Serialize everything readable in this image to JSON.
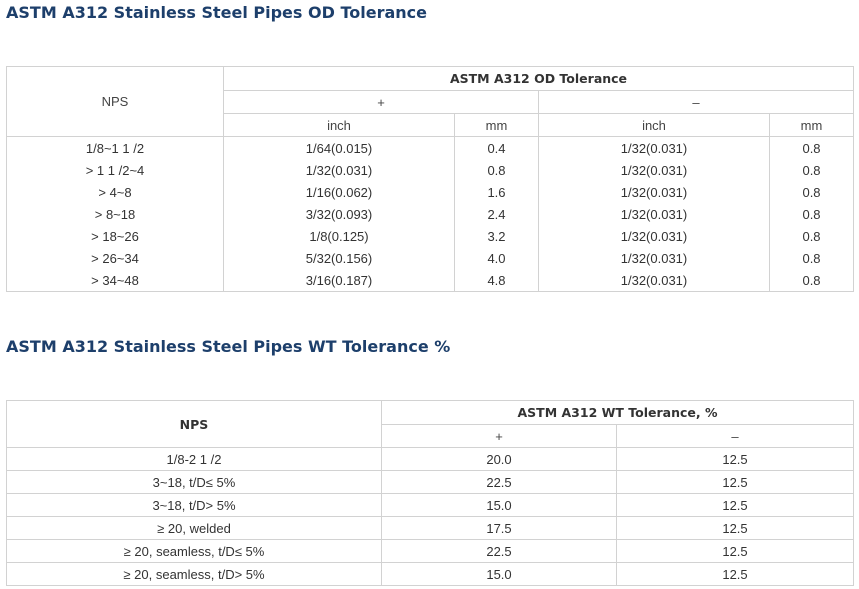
{
  "od_section": {
    "title": "ASTM A312 Stainless Steel Pipes OD Tolerance",
    "nps_header": "NPS",
    "group_header": "ASTM A312 OD Tolerance",
    "plus_label": "+",
    "minus_label": "–",
    "inch_label": "inch",
    "mm_label": "mm",
    "rows": [
      {
        "nps": "1/8~1 1 /2",
        "plus_inch": "1/64(0.015)",
        "plus_mm": "0.4",
        "minus_inch": "1/32(0.031)",
        "minus_mm": "0.8"
      },
      {
        "nps": "> 1 1 /2~4",
        "plus_inch": "1/32(0.031)",
        "plus_mm": "0.8",
        "minus_inch": "1/32(0.031)",
        "minus_mm": "0.8"
      },
      {
        "nps": "> 4~8",
        "plus_inch": "1/16(0.062)",
        "plus_mm": "1.6",
        "minus_inch": "1/32(0.031)",
        "minus_mm": "0.8"
      },
      {
        "nps": "> 8~18",
        "plus_inch": "3/32(0.093)",
        "plus_mm": "2.4",
        "minus_inch": "1/32(0.031)",
        "minus_mm": "0.8"
      },
      {
        "nps": "> 18~26",
        "plus_inch": "1/8(0.125)",
        "plus_mm": "3.2",
        "minus_inch": "1/32(0.031)",
        "minus_mm": "0.8"
      },
      {
        "nps": "> 26~34",
        "plus_inch": "5/32(0.156)",
        "plus_mm": "4.0",
        "minus_inch": "1/32(0.031)",
        "minus_mm": "0.8"
      },
      {
        "nps": "> 34~48",
        "plus_inch": "3/16(0.187)",
        "plus_mm": "4.8",
        "minus_inch": "1/32(0.031)",
        "minus_mm": "0.8"
      }
    ]
  },
  "wt_section": {
    "title": "ASTM A312 Stainless Steel Pipes WT Tolerance %",
    "nps_header": "NPS",
    "group_header": "ASTM A312 WT Tolerance, %",
    "plus_label": "+",
    "minus_label": "–",
    "rows": [
      {
        "nps": "1/8-2 1 /2",
        "plus": "20.0",
        "minus": "12.5"
      },
      {
        "nps": "3~18, t/D≤ 5%",
        "plus": "22.5",
        "minus": "12.5"
      },
      {
        "nps": "3~18, t/D> 5%",
        "plus": "15.0",
        "minus": "12.5"
      },
      {
        "nps": "≥ 20, welded",
        "plus": "17.5",
        "minus": "12.5"
      },
      {
        "nps": "≥ 20, seamless, t/D≤ 5%",
        "plus": "22.5",
        "minus": "12.5"
      },
      {
        "nps": "≥ 20, seamless, t/D> 5%",
        "plus": "15.0",
        "minus": "12.5"
      }
    ]
  }
}
